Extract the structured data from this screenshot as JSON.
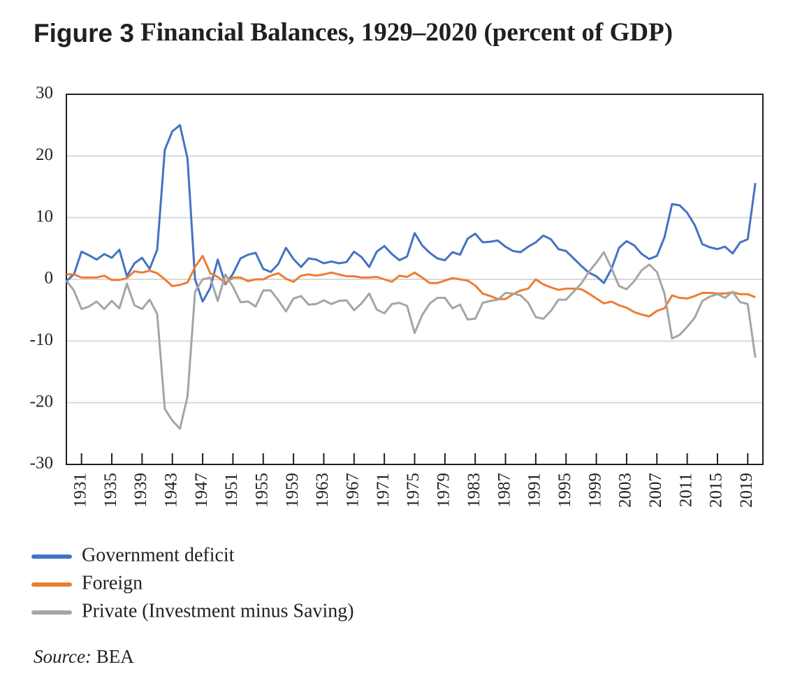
{
  "chart_data": {
    "type": "line",
    "title_label": "Figure 3",
    "title": "Financial Balances, 1929–2020 (percent of GDP)",
    "source_label": "Source:",
    "source": "BEA",
    "x": [
      1929,
      1930,
      1931,
      1932,
      1933,
      1934,
      1935,
      1936,
      1937,
      1938,
      1939,
      1940,
      1941,
      1942,
      1943,
      1944,
      1945,
      1946,
      1947,
      1948,
      1949,
      1950,
      1951,
      1952,
      1953,
      1954,
      1955,
      1956,
      1957,
      1958,
      1959,
      1960,
      1961,
      1962,
      1963,
      1964,
      1965,
      1966,
      1967,
      1968,
      1969,
      1970,
      1971,
      1972,
      1973,
      1974,
      1975,
      1976,
      1977,
      1978,
      1979,
      1980,
      1981,
      1982,
      1983,
      1984,
      1985,
      1986,
      1987,
      1988,
      1989,
      1990,
      1991,
      1992,
      1993,
      1994,
      1995,
      1996,
      1997,
      1998,
      1999,
      2000,
      2001,
      2002,
      2003,
      2004,
      2005,
      2006,
      2007,
      2008,
      2009,
      2010,
      2011,
      2012,
      2013,
      2014,
      2015,
      2016,
      2017,
      2018,
      2019,
      2020
    ],
    "series": [
      {
        "name": "Government deficit",
        "color": "#4472c4",
        "values": [
          -0.3,
          0.8,
          4.5,
          3.9,
          3.2,
          4.1,
          3.5,
          4.8,
          0.5,
          2.6,
          3.5,
          1.7,
          4.8,
          21,
          24,
          25,
          19.6,
          0,
          -3.6,
          -1.4,
          3.2,
          -0.8,
          0.9,
          3.4,
          4,
          4.3,
          1.7,
          1.2,
          2.5,
          5.1,
          3.3,
          2,
          3.4,
          3.2,
          2.6,
          2.9,
          2.6,
          2.8,
          4.5,
          3.6,
          2,
          4.5,
          5.4,
          4.1,
          3.1,
          3.7,
          7.5,
          5.5,
          4.3,
          3.4,
          3.1,
          4.4,
          4,
          6.6,
          7.4,
          6,
          6.1,
          6.3,
          5.3,
          4.6,
          4.4,
          5.3,
          6,
          7.1,
          6.5,
          4.9,
          4.6,
          3.4,
          2.2,
          1.1,
          0.5,
          -0.6,
          1.7,
          5.1,
          6.2,
          5.5,
          4.1,
          3.3,
          3.8,
          6.8,
          12.2,
          12,
          10.8,
          8.8,
          5.7,
          5.2,
          4.9,
          5.3,
          4.2,
          6,
          6.5,
          15.6
        ]
      },
      {
        "name": "Foreign",
        "color": "#ed7d31",
        "values": [
          0.8,
          0.8,
          0.3,
          0.3,
          0.3,
          0.6,
          -0.1,
          -0.1,
          0.2,
          1.3,
          1.1,
          1.4,
          1,
          0,
          -1.1,
          -0.9,
          -0.5,
          2,
          3.8,
          1,
          0.4,
          -0.6,
          0.3,
          0.3,
          -0.3,
          0,
          0,
          0.6,
          1,
          0.1,
          -0.4,
          0.6,
          0.8,
          0.6,
          0.8,
          1.1,
          0.8,
          0.5,
          0.5,
          0.3,
          0.3,
          0.4,
          0,
          -0.4,
          0.6,
          0.4,
          1.1,
          0.3,
          -0.6,
          -0.6,
          -0.2,
          0.2,
          0,
          -0.2,
          -1,
          -2.3,
          -2.7,
          -3.2,
          -3.2,
          -2.4,
          -1.8,
          -1.5,
          0,
          -0.8,
          -1.3,
          -1.7,
          -1.5,
          -1.5,
          -1.6,
          -2.3,
          -3.1,
          -3.9,
          -3.6,
          -4.2,
          -4.6,
          -5.3,
          -5.7,
          -6,
          -5.1,
          -4.7,
          -2.6,
          -3,
          -3.1,
          -2.7,
          -2.2,
          -2.2,
          -2.3,
          -2.3,
          -2.1,
          -2.4,
          -2.4,
          -2.9
        ]
      },
      {
        "name": "Private (Investment minus Saving)",
        "color": "#a5a5a5",
        "values": [
          -0.2,
          -1.8,
          -4.8,
          -4.4,
          -3.6,
          -4.8,
          -3.5,
          -4.7,
          -0.7,
          -4.2,
          -4.8,
          -3.3,
          -5.6,
          -21,
          -22.9,
          -24.2,
          -19,
          -2,
          0,
          0.3,
          -3.5,
          0.8,
          -1.2,
          -3.7,
          -3.6,
          -4.4,
          -1.8,
          -1.8,
          -3.4,
          -5.2,
          -3.1,
          -2.7,
          -4.1,
          -4,
          -3.4,
          -4,
          -3.5,
          -3.4,
          -5,
          -3.9,
          -2.3,
          -4.9,
          -5.5,
          -4,
          -3.8,
          -4.3,
          -8.7,
          -5.8,
          -3.9,
          -3,
          -3,
          -4.7,
          -4.1,
          -6.5,
          -6.4,
          -3.8,
          -3.5,
          -3.3,
          -2.2,
          -2.3,
          -2.6,
          -3.8,
          -6.1,
          -6.4,
          -5.1,
          -3.3,
          -3.3,
          -2,
          -0.7,
          1.2,
          2.7,
          4.4,
          1.8,
          -1.1,
          -1.6,
          -0.3,
          1.5,
          2.4,
          1.2,
          -2.3,
          -9.6,
          -9,
          -7.7,
          -6.2,
          -3.5,
          -2.8,
          -2.4,
          -3,
          -2,
          -3.7,
          -4,
          -12.7
        ]
      }
    ],
    "xlim": [
      1929,
      2021
    ],
    "xticks": [
      1931,
      1935,
      1939,
      1943,
      1947,
      1951,
      1955,
      1959,
      1963,
      1967,
      1971,
      1975,
      1979,
      1983,
      1987,
      1991,
      1995,
      1999,
      2003,
      2007,
      2011,
      2015,
      2019
    ],
    "ylim": [
      -30,
      30
    ],
    "yticks": [
      30,
      20,
      10,
      0,
      -10,
      -20,
      -30
    ],
    "grid": true,
    "legend": "bottom-left"
  }
}
